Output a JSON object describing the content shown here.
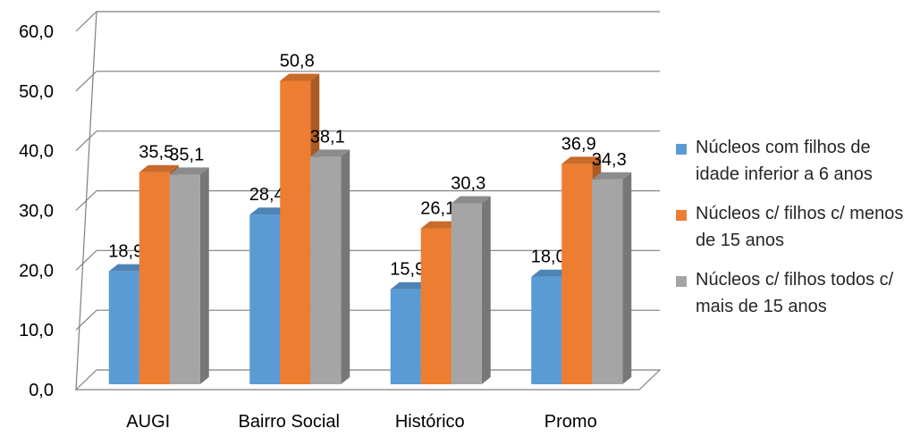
{
  "chart_data": {
    "type": "bar",
    "categories": [
      "AUGI",
      "Bairro Social",
      "Histórico",
      "Promo"
    ],
    "series": [
      {
        "name": "Núcleos com filhos de idade inferior a 6 anos",
        "color": "#5B9BD5",
        "values": [
          18.9,
          28.4,
          15.9,
          18.0
        ]
      },
      {
        "name": "Núcleos c/ filhos c/ menos de 15 anos",
        "color": "#ED7D31",
        "values": [
          35.5,
          50.8,
          26.1,
          36.9
        ]
      },
      {
        "name": "Núcleos c/ filhos todos c/ mais de 15 anos",
        "color": "#A5A5A5",
        "values": [
          35.1,
          38.1,
          30.3,
          34.3
        ]
      }
    ],
    "data_labels": [
      [
        "18,9",
        "28,4",
        "15,9",
        "18,0"
      ],
      [
        "35,5",
        "50,8",
        "26,1",
        "36,9"
      ],
      [
        "35,1",
        "38,1",
        "30,3",
        "34,3"
      ]
    ],
    "y_ticks": [
      "0,0",
      "10,0",
      "20,0",
      "30,0",
      "40,0",
      "50,0",
      "60,0"
    ],
    "ylim": [
      0,
      60
    ],
    "style": "3d-clustered-column",
    "grid": true,
    "legend_position": "right"
  }
}
